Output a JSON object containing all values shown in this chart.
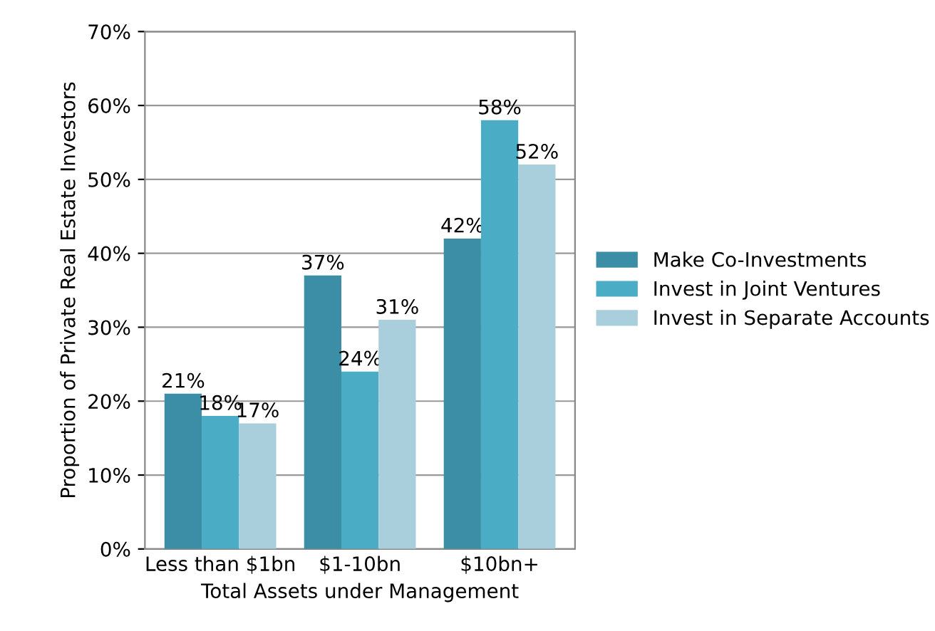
{
  "chart_data": {
    "type": "bar",
    "xlabel": "Total Assets under Management",
    "ylabel": "Proportion of Private Real Estate Investors",
    "categories": [
      "Less than $1bn",
      "$1-10bn",
      "$10bn+"
    ],
    "series": [
      {
        "name": "Make Co-Investments",
        "color": "#3b8ea5",
        "values": [
          21,
          37,
          42
        ],
        "value_labels": [
          "21%",
          "37%",
          "42%"
        ]
      },
      {
        "name": "Invest in Joint Ventures",
        "color": "#4bacc6",
        "values": [
          18,
          24,
          58
        ],
        "value_labels": [
          "18%",
          "24%",
          "58%"
        ]
      },
      {
        "name": "Invest in Separate Accounts",
        "color": "#a9cfdc",
        "values": [
          17,
          31,
          52
        ],
        "value_labels": [
          "17%",
          "31%",
          "52%"
        ]
      }
    ],
    "ylim": [
      0,
      70
    ],
    "yticks": [
      {
        "value": 0,
        "label": "0%"
      },
      {
        "value": 10,
        "label": "10%"
      },
      {
        "value": 20,
        "label": "20%"
      },
      {
        "value": 30,
        "label": "30%"
      },
      {
        "value": 40,
        "label": "40%"
      },
      {
        "value": 50,
        "label": "50%"
      },
      {
        "value": 60,
        "label": "60%"
      },
      {
        "value": 70,
        "label": "70%"
      }
    ],
    "grid": "y",
    "legend": "right"
  }
}
